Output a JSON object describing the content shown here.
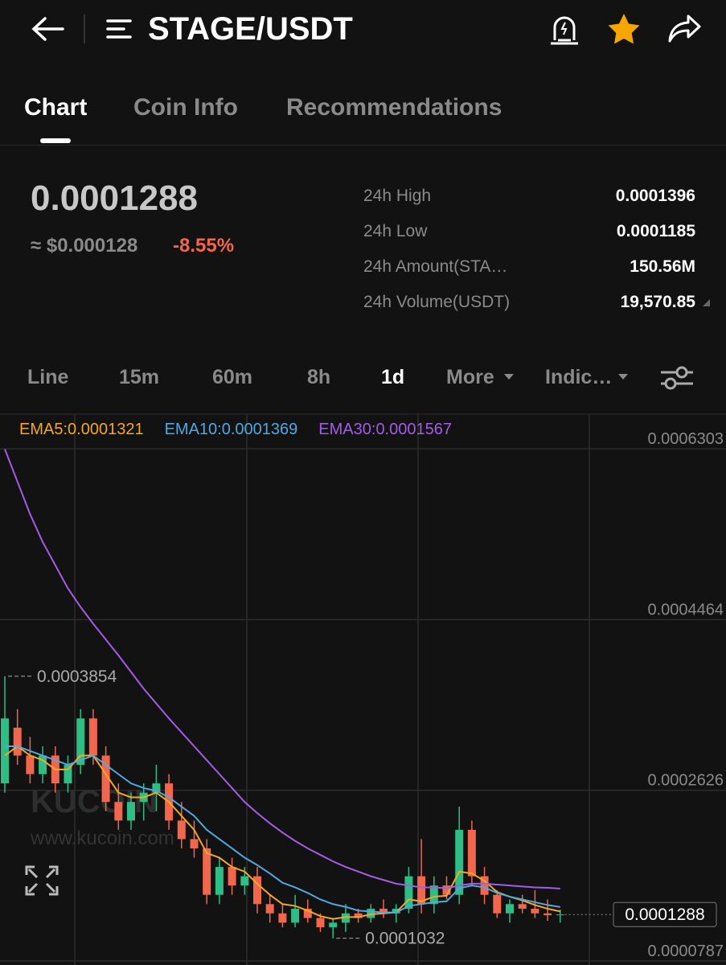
{
  "header": {
    "title": "STAGE/USDT"
  },
  "tabs": [
    "Chart",
    "Coin Info",
    "Recommendations"
  ],
  "ticker": {
    "price": "0.0001288",
    "usd_price": "≈ $0.000128",
    "change": "-8.55%",
    "stats": [
      {
        "label": "24h High",
        "value": "0.0001396"
      },
      {
        "label": "24h Low",
        "value": "0.0001185"
      },
      {
        "label": "24h Amount(STA…",
        "value": "150.56M"
      },
      {
        "label": "24h Volume(USDT)",
        "value": "19,570.85"
      }
    ]
  },
  "intervals": [
    "Line",
    "15m",
    "60m",
    "8h",
    "1d",
    "More",
    "Indic…"
  ],
  "watermark": {
    "brand": "KUCOIN",
    "url": "www.kucoin.com"
  },
  "chart_data": {
    "type": "candlestick",
    "ylim": [
      7.44e-05,
      0.0006677
    ],
    "yticks": [
      7.87e-05,
      0.0002626,
      0.0004464,
      0.0006303
    ],
    "grid": true,
    "up_color": "#2ebd85",
    "down_color": "#f0674e",
    "high_marker": 0.0003854,
    "low_marker": 0.0001032,
    "current_price": 0.0001288,
    "open": [
      0.00027,
      0.00033,
      0.0003,
      0.00028,
      0.0003,
      0.00027,
      0.00029,
      0.00034,
      0.0003,
      0.00025,
      0.00023,
      0.00025,
      0.00026,
      0.00027,
      0.00023,
      0.00021,
      0.0002,
      0.00015,
      0.00018,
      0.00016,
      0.00017,
      0.00014,
      0.00013,
      0.00012,
      0.000135,
      0.000125,
      0.000115,
      0.00012,
      0.00013,
      0.000125,
      0.000135,
      0.00013,
      0.000135,
      0.00017,
      0.00014,
      0.00016,
      0.00015,
      0.00022,
      0.00017,
      0.00015,
      0.00013,
      0.00014,
      0.000135,
      0.00013,
      0.000128
    ],
    "high": [
      0.0003854,
      0.00035,
      0.00032,
      0.00031,
      0.00031,
      0.0003,
      0.00035,
      0.00035,
      0.00031,
      0.00027,
      0.00026,
      0.00027,
      0.00029,
      0.00028,
      0.00025,
      0.00023,
      0.00021,
      0.00019,
      0.00019,
      0.00018,
      0.00018,
      0.00015,
      0.00014,
      0.00015,
      0.000145,
      0.00013,
      0.000125,
      0.00014,
      0.000135,
      0.00014,
      0.000145,
      0.00014,
      0.00018,
      0.00021,
      0.00017,
      0.00017,
      0.000245,
      0.00023,
      0.00018,
      0.000155,
      0.000145,
      0.00015,
      0.000155,
      0.000145,
      0.000134
    ],
    "low": [
      0.00026,
      0.00029,
      0.00027,
      0.00027,
      0.00026,
      0.00026,
      0.00028,
      0.00029,
      0.00024,
      0.00022,
      0.00022,
      0.00023,
      0.00024,
      0.00022,
      0.0002,
      0.00019,
      0.00014,
      0.00014,
      0.00015,
      0.00015,
      0.00013,
      0.00012,
      0.000115,
      0.000115,
      0.00012,
      0.00011,
      0.0001032,
      0.00011,
      0.00012,
      0.00012,
      0.000125,
      0.00012,
      0.00013,
      0.00013,
      0.00013,
      0.000145,
      0.00014,
      0.00016,
      0.00014,
      0.000125,
      0.00012,
      0.00013,
      0.000125,
      0.000122,
      0.00012
    ],
    "close": [
      0.00034,
      0.0003,
      0.00028,
      0.0003,
      0.00027,
      0.00029,
      0.00034,
      0.0003,
      0.00025,
      0.00023,
      0.00025,
      0.00026,
      0.00027,
      0.00023,
      0.00021,
      0.0002,
      0.00015,
      0.00018,
      0.00016,
      0.00017,
      0.00014,
      0.00013,
      0.00012,
      0.000135,
      0.000125,
      0.000115,
      0.00012,
      0.00013,
      0.000125,
      0.000135,
      0.00013,
      0.000135,
      0.00017,
      0.00014,
      0.00016,
      0.00015,
      0.00022,
      0.00017,
      0.00015,
      0.00013,
      0.00014,
      0.000135,
      0.00013,
      0.000128,
      0.0001288
    ],
    "series": [
      {
        "name": "EMA5:",
        "color": "#f5a623",
        "values": [
          0.0003,
          0.00031,
          0.0003,
          0.000295,
          0.000285,
          0.000285,
          0.0003,
          0.0003,
          0.00028,
          0.00026,
          0.000255,
          0.000255,
          0.00026,
          0.00025,
          0.000235,
          0.00022,
          0.000195,
          0.00019,
          0.00018,
          0.000175,
          0.000162,
          0.00015,
          0.00014,
          0.000138,
          0.000133,
          0.000127,
          0.000124,
          0.000126,
          0.000126,
          0.000129,
          0.00013,
          0.000131,
          0.000145,
          0.000143,
          0.000148,
          0.000149,
          0.000175,
          0.000173,
          0.000165,
          0.000153,
          0.000148,
          0.000144,
          0.000139,
          0.000135,
          0.0001321
        ]
      },
      {
        "name": "EMA10:",
        "color": "#4fa8e0",
        "values": [
          0.00031,
          0.00031,
          0.000305,
          0.0003,
          0.000295,
          0.00029,
          0.000295,
          0.0003,
          0.00029,
          0.00028,
          0.00027,
          0.000265,
          0.000262,
          0.000255,
          0.000245,
          0.000235,
          0.00022,
          0.00021,
          0.0002,
          0.00019,
          0.000182,
          0.000173,
          0.000163,
          0.000158,
          0.000152,
          0.000145,
          0.00014,
          0.000137,
          0.000133,
          0.000132,
          0.000131,
          0.000131,
          0.000138,
          0.00014,
          0.000142,
          0.000143,
          0.000157,
          0.00016,
          0.000158,
          0.000152,
          0.000148,
          0.000145,
          0.000142,
          0.000139,
          0.0001369
        ]
      },
      {
        "name": "EMA30:",
        "color": "#a45ce6",
        "values": [
          0.00063,
          0.000595,
          0.00056,
          0.00053,
          0.000505,
          0.00048,
          0.00046,
          0.000442,
          0.000425,
          0.000408,
          0.00039,
          0.000372,
          0.000356,
          0.00034,
          0.000325,
          0.00031,
          0.000295,
          0.00028,
          0.000265,
          0.00025,
          0.000238,
          0.000227,
          0.000217,
          0.000208,
          0.0002,
          0.000193,
          0.000186,
          0.00018,
          0.000175,
          0.00017,
          0.000166,
          0.000162,
          0.00016,
          0.000158,
          0.000158,
          0.000157,
          0.00016,
          0.000162,
          0.000162,
          0.000161,
          0.00016,
          0.000159,
          0.000158,
          0.0001575,
          0.0001567
        ]
      }
    ]
  }
}
